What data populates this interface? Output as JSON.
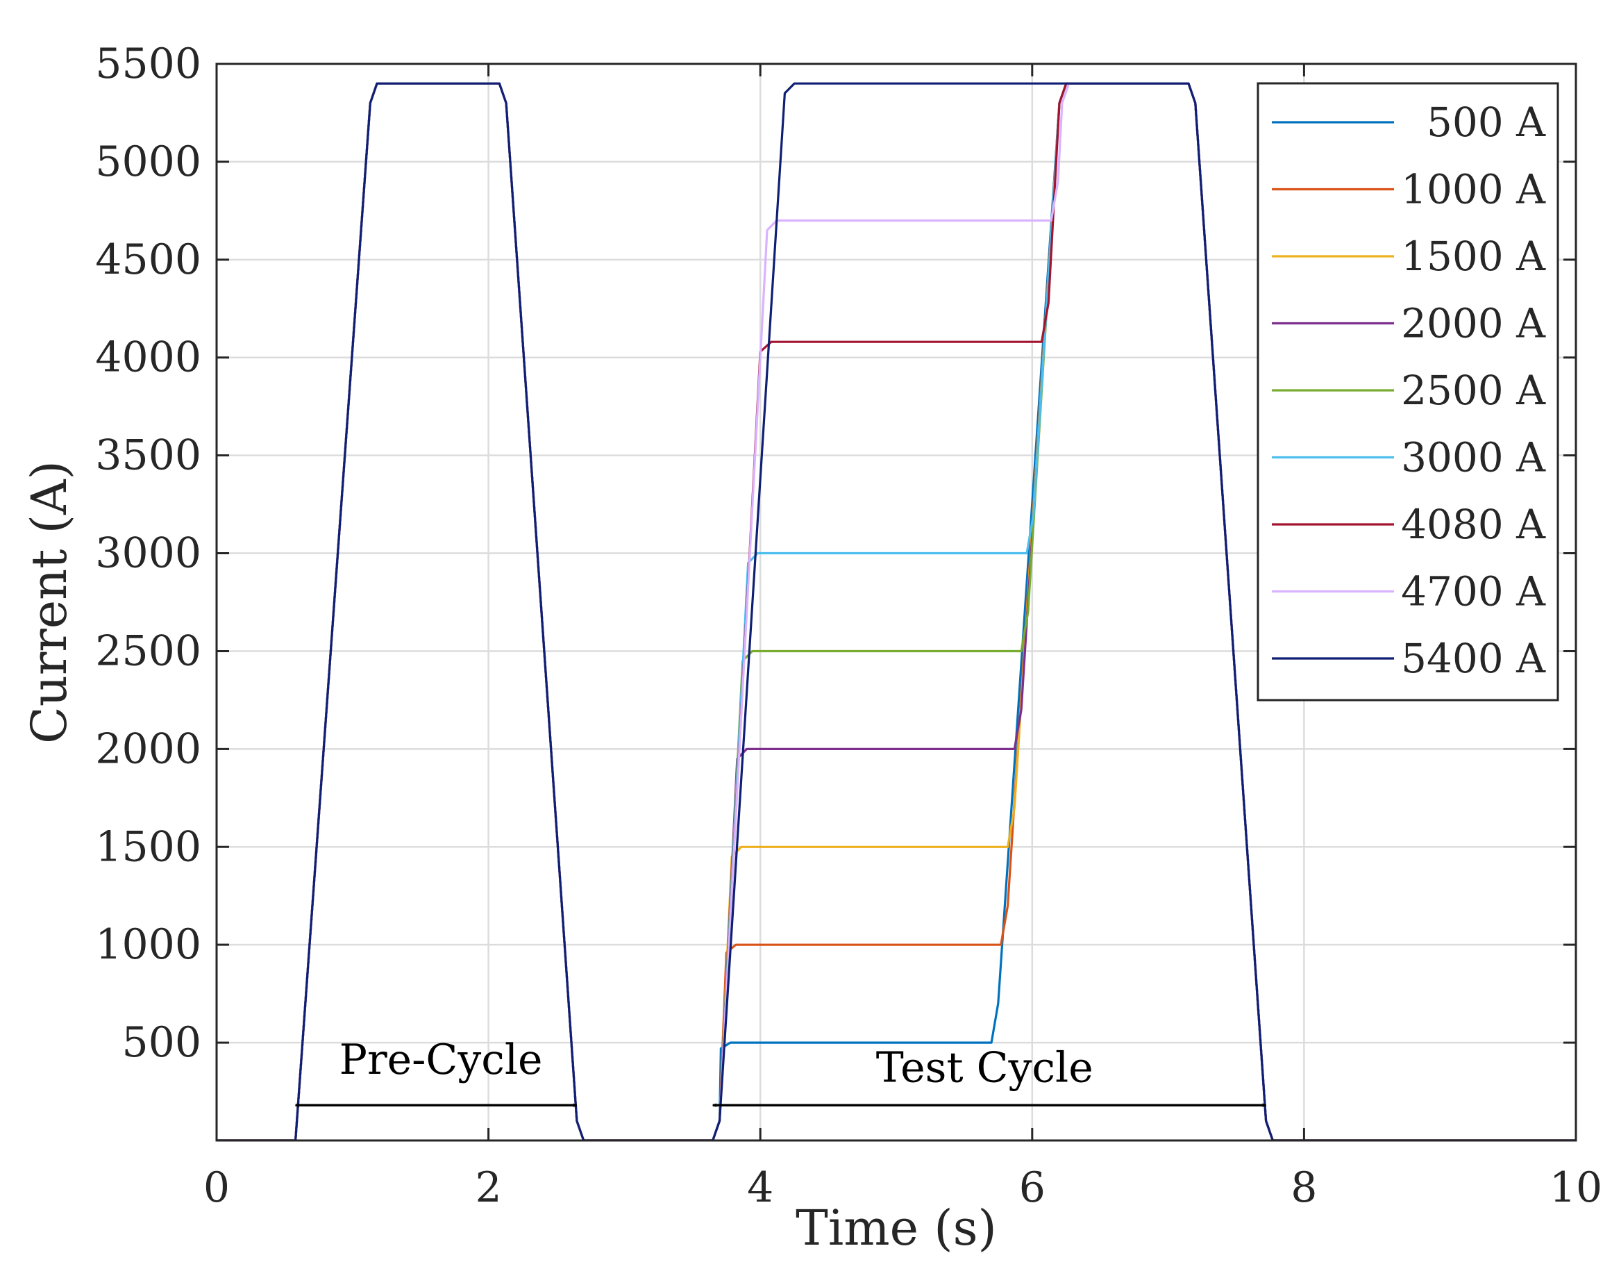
{
  "chart_data": {
    "type": "line",
    "title": "",
    "xlabel": "Time (s)",
    "ylabel": "Current (A)",
    "xlim": [
      0,
      10
    ],
    "ylim": [
      0,
      5500
    ],
    "grid": true,
    "legend_position": "top-right",
    "x_ticks": [
      0,
      2,
      4,
      6,
      8,
      10
    ],
    "x_tick_labels": [
      "0",
      "2",
      "4",
      "6",
      "8",
      "10"
    ],
    "y_ticks": [
      500,
      1000,
      1500,
      2000,
      2500,
      3000,
      3500,
      4000,
      4500,
      5000,
      5500
    ],
    "y_tick_labels": [
      "500",
      "1000",
      "1500",
      "2000",
      "2500",
      "3000",
      "3500",
      "4000",
      "4500",
      "5000",
      "5500"
    ],
    "series": [
      {
        "name": "500 A",
        "color": "#0072BD",
        "x": [
          0,
          0.58,
          1.13,
          1.18,
          2.08,
          2.13,
          2.65,
          2.7,
          3.65,
          3.7,
          3.71,
          3.78,
          5.7,
          5.75,
          6.2,
          6.25,
          7.15,
          7.2,
          7.72,
          7.77,
          10
        ],
        "y": [
          0,
          0,
          5300,
          5400,
          5400,
          5300,
          100,
          0,
          0,
          100,
          470,
          500,
          500,
          700,
          5300,
          5400,
          5400,
          5300,
          100,
          0,
          0
        ]
      },
      {
        "name": "1000 A",
        "color": "#D95319",
        "x": [
          0,
          0.58,
          1.13,
          1.18,
          2.08,
          2.13,
          2.65,
          2.7,
          3.65,
          3.7,
          3.75,
          3.82,
          5.77,
          5.82,
          6.2,
          6.25,
          7.15,
          7.2,
          7.72,
          7.77,
          10
        ],
        "y": [
          0,
          0,
          5300,
          5400,
          5400,
          5300,
          100,
          0,
          0,
          100,
          960,
          1000,
          1000,
          1200,
          5300,
          5400,
          5400,
          5300,
          100,
          0,
          0
        ]
      },
      {
        "name": "1500 A",
        "color": "#EDB120",
        "x": [
          0,
          0.58,
          1.13,
          1.18,
          2.08,
          2.13,
          2.65,
          2.7,
          3.65,
          3.7,
          3.79,
          3.86,
          5.82,
          5.87,
          6.2,
          6.25,
          7.15,
          7.2,
          7.72,
          7.77,
          10
        ],
        "y": [
          0,
          0,
          5300,
          5400,
          5400,
          5300,
          100,
          0,
          0,
          100,
          1450,
          1500,
          1500,
          1700,
          5300,
          5400,
          5400,
          5300,
          100,
          0,
          0
        ]
      },
      {
        "name": "2000 A",
        "color": "#7E2F8E",
        "x": [
          0,
          0.58,
          1.13,
          1.18,
          2.08,
          2.13,
          2.65,
          2.7,
          3.65,
          3.7,
          3.83,
          3.9,
          5.87,
          5.92,
          6.2,
          6.25,
          7.15,
          7.2,
          7.72,
          7.77,
          10
        ],
        "y": [
          0,
          0,
          5300,
          5400,
          5400,
          5300,
          100,
          0,
          0,
          100,
          1950,
          2000,
          2000,
          2200,
          5300,
          5400,
          5400,
          5300,
          100,
          0,
          0
        ]
      },
      {
        "name": "2500 A",
        "color": "#77AC30",
        "x": [
          0,
          0.58,
          1.13,
          1.18,
          2.08,
          2.13,
          2.65,
          2.7,
          3.65,
          3.7,
          3.87,
          3.94,
          5.92,
          5.97,
          6.2,
          6.25,
          7.15,
          7.2,
          7.72,
          7.77,
          10
        ],
        "y": [
          0,
          0,
          5300,
          5400,
          5400,
          5300,
          100,
          0,
          0,
          100,
          2450,
          2500,
          2500,
          2700,
          5300,
          5400,
          5400,
          5300,
          100,
          0,
          0
        ]
      },
      {
        "name": "3000 A",
        "color": "#4DBEEE",
        "x": [
          0,
          0.58,
          1.13,
          1.18,
          2.08,
          2.13,
          2.65,
          2.7,
          3.65,
          3.7,
          3.91,
          3.98,
          5.96,
          6.01,
          6.2,
          6.25,
          7.15,
          7.2,
          7.72,
          7.77,
          10
        ],
        "y": [
          0,
          0,
          5300,
          5400,
          5400,
          5300,
          100,
          0,
          0,
          100,
          2950,
          3000,
          3000,
          3200,
          5300,
          5400,
          5400,
          5300,
          100,
          0,
          0
        ]
      },
      {
        "name": "4080 A",
        "color": "#A2142F",
        "x": [
          0,
          0.58,
          1.13,
          1.18,
          2.08,
          2.13,
          2.65,
          2.7,
          3.65,
          3.7,
          4.0,
          4.08,
          6.07,
          6.12,
          6.2,
          6.25,
          7.15,
          7.2,
          7.72,
          7.77,
          10
        ],
        "y": [
          0,
          0,
          5300,
          5400,
          5400,
          5300,
          100,
          0,
          0,
          100,
          4030,
          4080,
          4080,
          4280,
          5300,
          5400,
          5400,
          5300,
          100,
          0,
          0
        ]
      },
      {
        "name": "4700 A",
        "color": "#D9B3FF",
        "x": [
          0,
          0.58,
          1.13,
          1.18,
          2.08,
          2.13,
          2.65,
          2.7,
          3.65,
          3.7,
          4.05,
          4.12,
          6.14,
          6.19,
          6.22,
          6.27,
          7.15,
          7.2,
          7.72,
          7.77,
          10
        ],
        "y": [
          0,
          0,
          5300,
          5400,
          5400,
          5300,
          100,
          0,
          0,
          100,
          4650,
          4700,
          4700,
          4900,
          5300,
          5400,
          5400,
          5300,
          100,
          0,
          0
        ]
      },
      {
        "name": "5400 A",
        "color": "#0F1F73",
        "x": [
          0,
          0.58,
          1.13,
          1.18,
          2.08,
          2.13,
          2.65,
          2.7,
          3.65,
          3.7,
          4.18,
          4.25,
          7.15,
          7.2,
          7.72,
          7.77,
          10
        ],
        "y": [
          0,
          0,
          5300,
          5400,
          5400,
          5300,
          100,
          0,
          0,
          100,
          5350,
          5400,
          5400,
          5300,
          100,
          0,
          0
        ]
      }
    ],
    "annotations": [
      {
        "text": "Pre-Cycle",
        "arrow_x": [
          0.58,
          2.65
        ],
        "arrow_y": 180,
        "text_x": 1.65,
        "text_y": 340
      },
      {
        "text": "Test Cycle",
        "arrow_x": [
          3.65,
          7.72
        ],
        "arrow_y": 180,
        "text_x": 5.65,
        "text_y": 300
      }
    ]
  }
}
